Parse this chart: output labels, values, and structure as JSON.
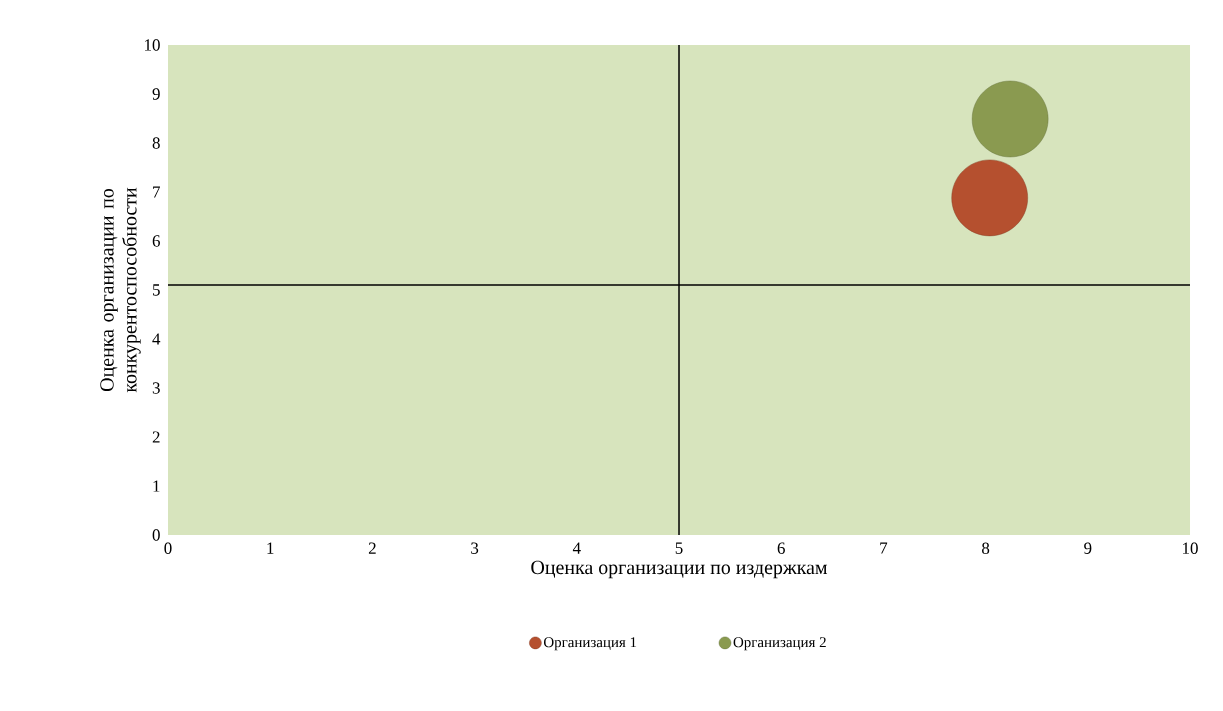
{
  "chart_data": {
    "type": "bubble",
    "xlabel": "Оценка организации по издержкам",
    "ylabel": "Оценка организации по конкурентоспособности",
    "xlim": [
      0,
      10
    ],
    "ylim": [
      0,
      10
    ],
    "xticks": [
      0,
      1,
      2,
      3,
      4,
      5,
      6,
      7,
      8,
      9,
      10
    ],
    "yticks": [
      0,
      1,
      2,
      3,
      4,
      5,
      6,
      7,
      8,
      9,
      10
    ],
    "series": [
      {
        "name": "Организация 1",
        "color": "#b5502f",
        "x": [
          8.04
        ],
        "values": [
          6.88
        ],
        "sizes": [
          1
        ]
      },
      {
        "name": "Организация 2",
        "color": "#8a9a50",
        "x": [
          8.24
        ],
        "values": [
          8.49
        ],
        "sizes": [
          1
        ]
      }
    ],
    "ref_lines": [
      {
        "axis": "x",
        "value": 5,
        "color": "#000000"
      },
      {
        "axis": "y",
        "value": 5.1,
        "color": "#000000"
      }
    ],
    "legend": "bottom",
    "marker": "circle",
    "grid": false
  }
}
